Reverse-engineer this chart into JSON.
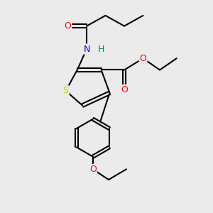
{
  "background_color": "#ebebeb",
  "atom_colors": {
    "S": "#cccc00",
    "N": "#0000ff",
    "O": "#ff0000",
    "H": "#008080",
    "C": "#000000"
  },
  "bond_color": "#000000",
  "bond_width": 1.5,
  "figsize": [
    3.0,
    3.0
  ],
  "dpi": 100
}
